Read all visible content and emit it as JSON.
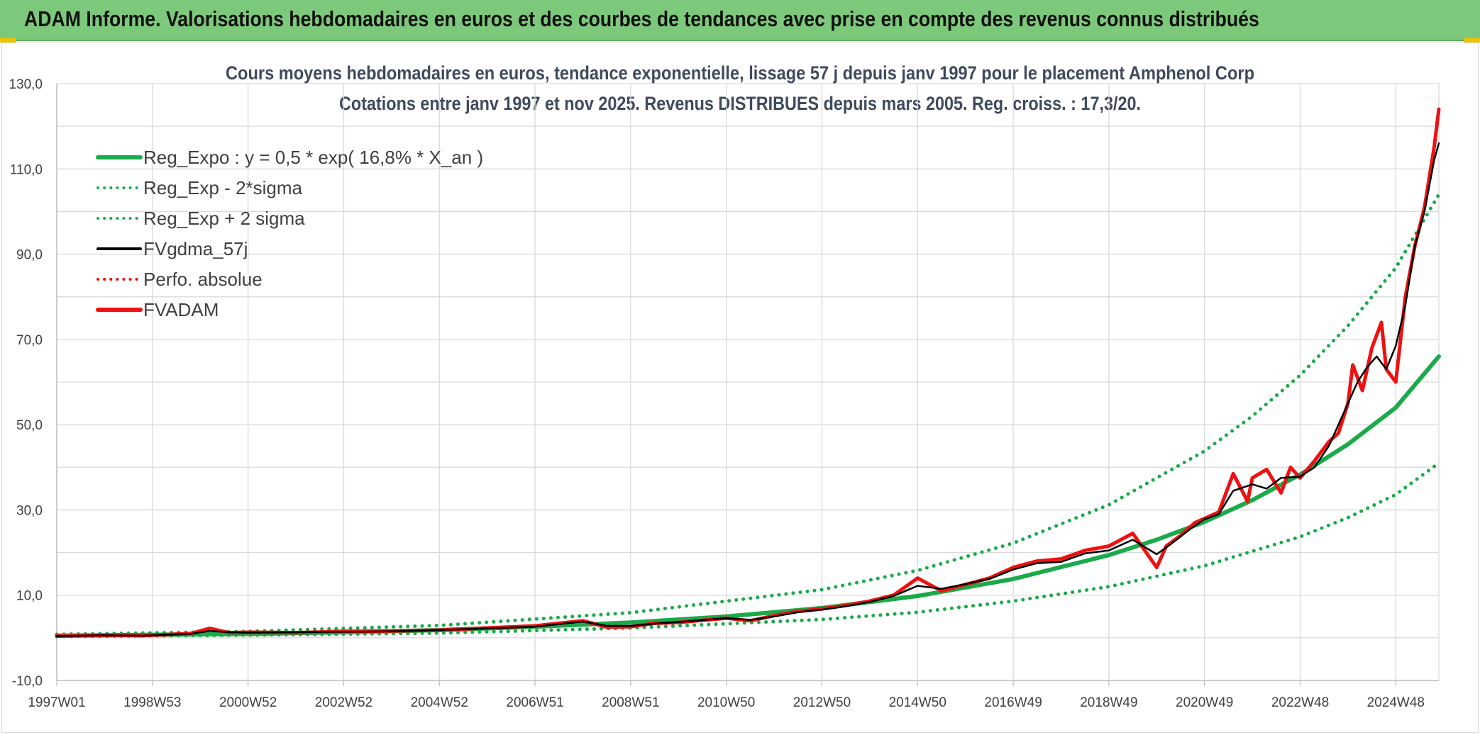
{
  "banner": {
    "title": "ADAM Informe. Valorisations hebdomadaires en euros et des courbes de tendances avec prise en compte des revenus connus distribués"
  },
  "colors": {
    "banner_bg": "#7dc97b",
    "regression": "#1aaa4a",
    "fvgdma": "#000000",
    "fvadam": "#ee1111",
    "perfo": "#ee1111",
    "grid": "#d9d9d9"
  },
  "chart_data": {
    "type": "line",
    "title_line1": "Cours moyens hebdomadaires en euros, tendance exponentielle, lissage 57 j depuis janv 1997 pour le placement Amphenol Corp",
    "title_line2": "Cotations entre janv 1997 et nov 2025. Revenus DISTRIBUES depuis mars 2005. Reg. croiss. : 17,3/20.",
    "ylim": [
      -10,
      130
    ],
    "y_ticks": [
      "-10,0",
      "10,0",
      "30,0",
      "50,0",
      "70,0",
      "90,0",
      "110,0",
      "130,0"
    ],
    "y_tick_values": [
      -10,
      10,
      30,
      50,
      70,
      90,
      110,
      130
    ],
    "x_range_years": [
      1997.0,
      2025.9
    ],
    "x_ticks": [
      "1997W01",
      "1998W53",
      "2000W52",
      "2002W52",
      "2004W52",
      "2006W51",
      "2008W51",
      "2010W50",
      "2012W50",
      "2014W50",
      "2016W49",
      "2018W49",
      "2020W49",
      "2022W48",
      "2024W48"
    ],
    "x_tick_years": [
      1997.0,
      1999.0,
      2001.0,
      2003.0,
      2005.0,
      2007.0,
      2009.0,
      2011.0,
      2013.0,
      2015.0,
      2017.0,
      2019.0,
      2021.0,
      2023.0,
      2025.0
    ],
    "grid": true,
    "legend_position": "top-left",
    "legend": [
      {
        "key": "reg",
        "label": "Reg_Expo : y = 0,5 * exp( 16,8% *  X_an )",
        "style": "solid-thick",
        "color": "#1aaa4a"
      },
      {
        "key": "lower",
        "label": "Reg_Exp - 2*sigma",
        "style": "dotted",
        "color": "#1aaa4a"
      },
      {
        "key": "upper",
        "label": "Reg_Exp + 2 sigma",
        "style": "dotted",
        "color": "#1aaa4a"
      },
      {
        "key": "fvgdma",
        "label": "FVgdma_57j",
        "style": "solid",
        "color": "#000000"
      },
      {
        "key": "perfo",
        "label": "Perfo. absolue",
        "style": "dotted",
        "color": "#ee1111"
      },
      {
        "key": "fvadam",
        "label": "FVADAM",
        "style": "solid-thick",
        "color": "#ee1111"
      }
    ],
    "series": [
      {
        "name": "Reg_Expo : y = 0,5 * exp( 16,8% *  X_an )",
        "x": [
          1997.0,
          1999.0,
          2001.0,
          2003.0,
          2005.0,
          2007.0,
          2009.0,
          2011.0,
          2013.0,
          2015.0,
          2017.0,
          2019.0,
          2020.0,
          2021.0,
          2022.0,
          2023.0,
          2024.0,
          2025.0,
          2025.9
        ],
        "y": [
          0.5,
          0.7,
          0.9,
          1.3,
          1.8,
          2.6,
          3.6,
          5.0,
          7.0,
          9.8,
          13.8,
          19.4,
          23.0,
          27.2,
          32.3,
          38.3,
          45.4,
          54.0,
          66.0
        ]
      },
      {
        "name": "Reg_Exp - 2*sigma",
        "x": [
          1997.0,
          2001.0,
          2005.0,
          2009.0,
          2013.0,
          2015.0,
          2017.0,
          2019.0,
          2021.0,
          2023.0,
          2024.0,
          2025.0,
          2025.9
        ],
        "y": [
          0.3,
          0.6,
          1.1,
          2.3,
          4.3,
          6.0,
          8.6,
          12.0,
          16.9,
          23.7,
          28.2,
          33.6,
          41.0
        ]
      },
      {
        "name": "Reg_Exp + 2 sigma",
        "x": [
          1997.0,
          2001.0,
          2005.0,
          2009.0,
          2013.0,
          2015.0,
          2017.0,
          2019.0,
          2021.0,
          2022.0,
          2023.0,
          2024.0,
          2025.0,
          2025.9
        ],
        "y": [
          0.8,
          1.5,
          2.9,
          5.9,
          11.3,
          15.8,
          22.2,
          31.2,
          43.8,
          52.0,
          61.6,
          73.2,
          86.8,
          104.0
        ]
      },
      {
        "name": "FVgdma_57j",
        "x": [
          1997.0,
          1998.0,
          1998.8,
          1999.8,
          2000.2,
          2000.6,
          2001.0,
          2002.0,
          2003.0,
          2004.0,
          2005.0,
          2006.0,
          2007.0,
          2007.5,
          2008.0,
          2008.5,
          2009.0,
          2009.5,
          2010.0,
          2011.0,
          2011.5,
          2012.0,
          2012.5,
          2013.0,
          2013.5,
          2014.0,
          2014.5,
          2015.0,
          2015.5,
          2016.0,
          2016.5,
          2017.0,
          2017.5,
          2018.0,
          2018.5,
          2019.0,
          2019.5,
          2020.0,
          2020.3,
          2020.7,
          2021.0,
          2021.3,
          2021.6,
          2022.0,
          2022.3,
          2022.6,
          2023.0,
          2023.3,
          2023.6,
          2024.0,
          2024.2,
          2024.4,
          2024.6,
          2024.8,
          2025.0,
          2025.2,
          2025.4,
          2025.6,
          2025.8,
          2025.9
        ],
        "y": [
          0.4,
          0.6,
          0.5,
          0.9,
          1.6,
          1.3,
          1.2,
          1.3,
          1.4,
          1.5,
          1.8,
          2.2,
          2.6,
          3.2,
          3.8,
          2.8,
          2.8,
          3.3,
          3.7,
          4.6,
          4.2,
          5.0,
          6.0,
          6.6,
          7.4,
          8.4,
          9.8,
          12.2,
          11.5,
          12.6,
          13.8,
          16.0,
          17.5,
          17.8,
          19.8,
          20.5,
          23.0,
          19.6,
          22.0,
          25.5,
          27.8,
          29.0,
          34.5,
          36.0,
          35.0,
          37.5,
          37.8,
          40.0,
          45.0,
          55.0,
          60.0,
          63.5,
          66.0,
          63.0,
          68.5,
          78.0,
          92.0,
          100.0,
          112.0,
          116.0
        ]
      },
      {
        "name": "FVADAM",
        "x": [
          1997.0,
          1998.0,
          1998.8,
          1999.8,
          2000.2,
          2000.6,
          2001.0,
          2002.0,
          2003.0,
          2004.0,
          2005.0,
          2006.0,
          2007.0,
          2007.5,
          2008.0,
          2008.5,
          2009.0,
          2009.5,
          2010.0,
          2011.0,
          2011.5,
          2012.0,
          2012.5,
          2013.0,
          2013.5,
          2014.0,
          2014.5,
          2015.0,
          2015.5,
          2016.0,
          2016.5,
          2017.0,
          2017.5,
          2018.0,
          2018.5,
          2019.0,
          2019.5,
          2020.0,
          2020.2,
          2020.5,
          2020.8,
          2021.0,
          2021.3,
          2021.6,
          2021.9,
          2022.0,
          2022.3,
          2022.6,
          2022.8,
          2023.0,
          2023.3,
          2023.6,
          2023.8,
          2024.0,
          2024.1,
          2024.3,
          2024.5,
          2024.7,
          2024.8,
          2025.0,
          2025.2,
          2025.4,
          2025.6,
          2025.8,
          2025.9
        ],
        "y": [
          0.4,
          0.6,
          0.5,
          1.0,
          2.2,
          1.2,
          1.3,
          1.2,
          1.5,
          1.6,
          1.8,
          2.3,
          2.8,
          3.4,
          4.0,
          2.5,
          2.6,
          3.4,
          3.6,
          4.6,
          4.0,
          5.2,
          6.2,
          6.8,
          7.6,
          8.6,
          10.0,
          14.0,
          11.0,
          12.5,
          14.0,
          16.5,
          18.0,
          18.5,
          20.5,
          21.5,
          24.5,
          16.5,
          21.5,
          24.0,
          27.0,
          28.0,
          29.5,
          38.5,
          32.0,
          37.5,
          39.5,
          34.0,
          40.0,
          37.5,
          41.5,
          46.0,
          48.0,
          55.0,
          64.0,
          58.0,
          68.0,
          74.0,
          63.0,
          60.0,
          80.0,
          92.0,
          101.0,
          115.0,
          124.0
        ]
      }
    ]
  }
}
